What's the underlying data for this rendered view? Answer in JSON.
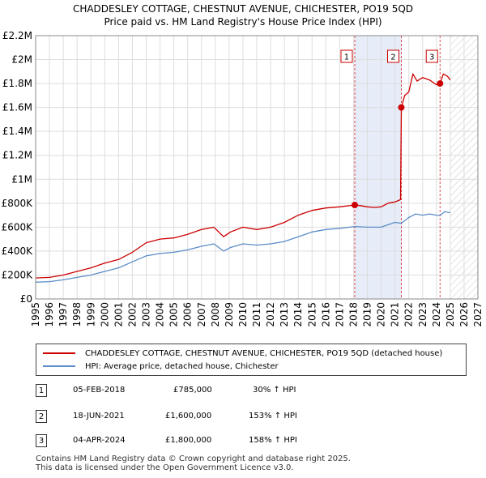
{
  "title": "CHADDESLEY COTTAGE, CHESTNUT AVENUE, CHICHESTER, PO19 5QD",
  "subtitle": "Price paid vs. HM Land Registry's House Price Index (HPI)",
  "colors": {
    "property": "#cc0000",
    "hpi": "#5b8dc8",
    "shade": "#e6ecf8",
    "hatch": "#c8c8c8",
    "grid": "#dddddd",
    "vline": "#cc0000"
  },
  "chart_data": {
    "type": "line",
    "title": "CHADDESLEY COTTAGE, CHESTNUT AVENUE, CHICHESTER, PO19 5QD",
    "xlabel": "",
    "ylabel": "",
    "xlim": [
      1995,
      2027
    ],
    "ylim": [
      0,
      2200000
    ],
    "x_ticks": [
      "1995",
      "1996",
      "1997",
      "1998",
      "1999",
      "2000",
      "2001",
      "2002",
      "2003",
      "2004",
      "2005",
      "2006",
      "2007",
      "2008",
      "2009",
      "2010",
      "2011",
      "2012",
      "2013",
      "2014",
      "2015",
      "2016",
      "2017",
      "2018",
      "2019",
      "2020",
      "2021",
      "2022",
      "2023",
      "2024",
      "2025",
      "2026",
      "2027"
    ],
    "y_ticks": [
      {
        "value": 0,
        "label": "£0"
      },
      {
        "value": 200000,
        "label": "£200K"
      },
      {
        "value": 400000,
        "label": "£400K"
      },
      {
        "value": 600000,
        "label": "£600K"
      },
      {
        "value": 800000,
        "label": "£800K"
      },
      {
        "value": 1000000,
        "label": "£1M"
      },
      {
        "value": 1200000,
        "label": "£1.2M"
      },
      {
        "value": 1400000,
        "label": "£1.4M"
      },
      {
        "value": 1600000,
        "label": "£1.6M"
      },
      {
        "value": 1800000,
        "label": "£1.8M"
      },
      {
        "value": 2000000,
        "label": "£2M"
      },
      {
        "value": 2200000,
        "label": "£2.2M"
      }
    ],
    "shaded_region": [
      2018.09,
      2021.46
    ],
    "forecast_from": 2025.0,
    "series": [
      {
        "name": "CHADDESLEY COTTAGE, CHESTNUT AVENUE, CHICHESTER, PO19 5QD (detached house)",
        "x": [
          1995.0,
          1996.0,
          1997.0,
          1998.0,
          1999.0,
          2000.0,
          2001.0,
          2002.0,
          2003.0,
          2004.0,
          2005.0,
          2006.0,
          2007.0,
          2007.9,
          2008.6,
          2009.1,
          2010.0,
          2011.0,
          2012.0,
          2013.0,
          2014.0,
          2015.0,
          2016.0,
          2017.0,
          2018.09,
          2018.5,
          2019.0,
          2019.5,
          2020.0,
          2020.5,
          2021.0,
          2021.4,
          2021.46,
          2021.7,
          2022.0,
          2022.3,
          2022.6,
          2023.0,
          2023.5,
          2024.0,
          2024.26,
          2024.5,
          2024.8,
          2025.0
        ],
        "y": [
          175000,
          180000,
          200000,
          230000,
          260000,
          300000,
          330000,
          390000,
          470000,
          500000,
          510000,
          540000,
          580000,
          600000,
          520000,
          560000,
          600000,
          580000,
          600000,
          640000,
          700000,
          740000,
          760000,
          770000,
          785000,
          780000,
          770000,
          765000,
          770000,
          800000,
          810000,
          830000,
          1600000,
          1700000,
          1730000,
          1880000,
          1820000,
          1850000,
          1830000,
          1790000,
          1800000,
          1880000,
          1860000,
          1830000
        ]
      },
      {
        "name": "HPI: Average price, detached house, Chichester",
        "x": [
          1995.0,
          1996.0,
          1997.0,
          1998.0,
          1999.0,
          2000.0,
          2001.0,
          2002.0,
          2003.0,
          2004.0,
          2005.0,
          2006.0,
          2007.0,
          2007.9,
          2008.6,
          2009.1,
          2010.0,
          2011.0,
          2012.0,
          2013.0,
          2014.0,
          2015.0,
          2016.0,
          2017.0,
          2018.09,
          2019.0,
          2020.0,
          2020.5,
          2021.0,
          2021.46,
          2022.0,
          2022.5,
          2023.0,
          2023.5,
          2024.0,
          2024.26,
          2024.6,
          2025.0
        ],
        "y": [
          140000,
          145000,
          160000,
          180000,
          200000,
          230000,
          260000,
          310000,
          360000,
          380000,
          390000,
          410000,
          440000,
          460000,
          400000,
          430000,
          460000,
          450000,
          460000,
          480000,
          520000,
          560000,
          580000,
          590000,
          605000,
          600000,
          600000,
          620000,
          640000,
          633000,
          680000,
          710000,
          700000,
          710000,
          700000,
          697000,
          730000,
          720000
        ]
      }
    ],
    "sales": [
      {
        "label": "1",
        "x": 2018.09,
        "y": 785000
      },
      {
        "label": "2",
        "x": 2021.46,
        "y": 1600000
      },
      {
        "label": "3",
        "x": 2024.26,
        "y": 1800000
      }
    ]
  },
  "legend": {
    "property": "CHADDESLEY COTTAGE, CHESTNUT AVENUE, CHICHESTER, PO19 5QD (detached house)",
    "hpi": "HPI: Average price, detached house, Chichester"
  },
  "transactions": [
    {
      "num": "1",
      "date": "05-FEB-2018",
      "price": "£785,000",
      "hpi": "30% ↑ HPI"
    },
    {
      "num": "2",
      "date": "18-JUN-2021",
      "price": "£1,600,000",
      "hpi": "153% ↑ HPI"
    },
    {
      "num": "3",
      "date": "04-APR-2024",
      "price": "£1,800,000",
      "hpi": "158% ↑ HPI"
    }
  ],
  "footer": {
    "line1": "Contains HM Land Registry data © Crown copyright and database right 2025.",
    "line2": "This data is licensed under the Open Government Licence v3.0."
  }
}
